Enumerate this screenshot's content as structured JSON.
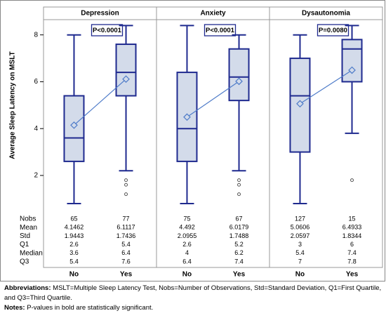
{
  "chart_data": {
    "type": "boxplot",
    "y_label": "Average Sleep Latency on MSLT",
    "ylim": [
      0.5,
      8.65
    ],
    "yticks": [
      2,
      4,
      6,
      8
    ],
    "categories": [
      "No",
      "Yes"
    ],
    "stat_labels": [
      "Nobs",
      "Mean",
      "Std",
      "Q1",
      "Median",
      "Q3"
    ],
    "box_color": "#1f2a8f",
    "box_fill": "#d3dbea",
    "mean_line_color": "#4f7cc9",
    "panels": [
      {
        "title": "Depression",
        "p_value": "P<0.0001",
        "groups": [
          {
            "nobs": 65,
            "mean": 4.1462,
            "std": 1.9443,
            "q1": 2.6,
            "median": 3.6,
            "q3": 5.4,
            "whisker_low": 0.8,
            "whisker_high": 8,
            "outliers": []
          },
          {
            "nobs": 77,
            "mean": 6.1117,
            "std": 1.7436,
            "q1": 5.4,
            "median": 6.4,
            "q3": 7.6,
            "whisker_low": 2.2,
            "whisker_high": 8.4,
            "outliers": [
              1.8,
              1.6,
              1.2
            ]
          }
        ]
      },
      {
        "title": "Anxiety",
        "p_value": "P<0.0001",
        "groups": [
          {
            "nobs": 75,
            "mean": 4.492,
            "std": 2.0955,
            "q1": 2.6,
            "median": 4,
            "q3": 6.4,
            "whisker_low": 0.8,
            "whisker_high": 8.4,
            "outliers": []
          },
          {
            "nobs": 67,
            "mean": 6.0179,
            "std": 1.7488,
            "q1": 5.2,
            "median": 6.2,
            "q3": 7.4,
            "whisker_low": 2.2,
            "whisker_high": 8,
            "outliers": [
              1.8,
              1.6,
              1.2
            ]
          }
        ]
      },
      {
        "title": "Dysautonomia",
        "p_value": "P=0.0080",
        "groups": [
          {
            "nobs": 127,
            "mean": 5.0606,
            "std": 2.0597,
            "q1": 3,
            "median": 5.4,
            "q3": 7,
            "whisker_low": 0.8,
            "whisker_high": 8,
            "outliers": []
          },
          {
            "nobs": 15,
            "mean": 6.4933,
            "std": 1.8344,
            "q1": 6,
            "median": 7.4,
            "q3": 7.8,
            "whisker_low": 3.8,
            "whisker_high": 8.4,
            "outliers": [
              1.8
            ]
          }
        ]
      }
    ]
  },
  "footnotes": {
    "abbreviations_label": "Abbreviations:",
    "abbreviations": "MSLT=Multiple Sleep Latency Test, Nobs=Number of Observations, Std=Standard Deviation, Q1=First Quartile, and Q3=Third Quartile.",
    "notes_label": "Notes:",
    "notes": "P-values in bold are statistically significant."
  }
}
